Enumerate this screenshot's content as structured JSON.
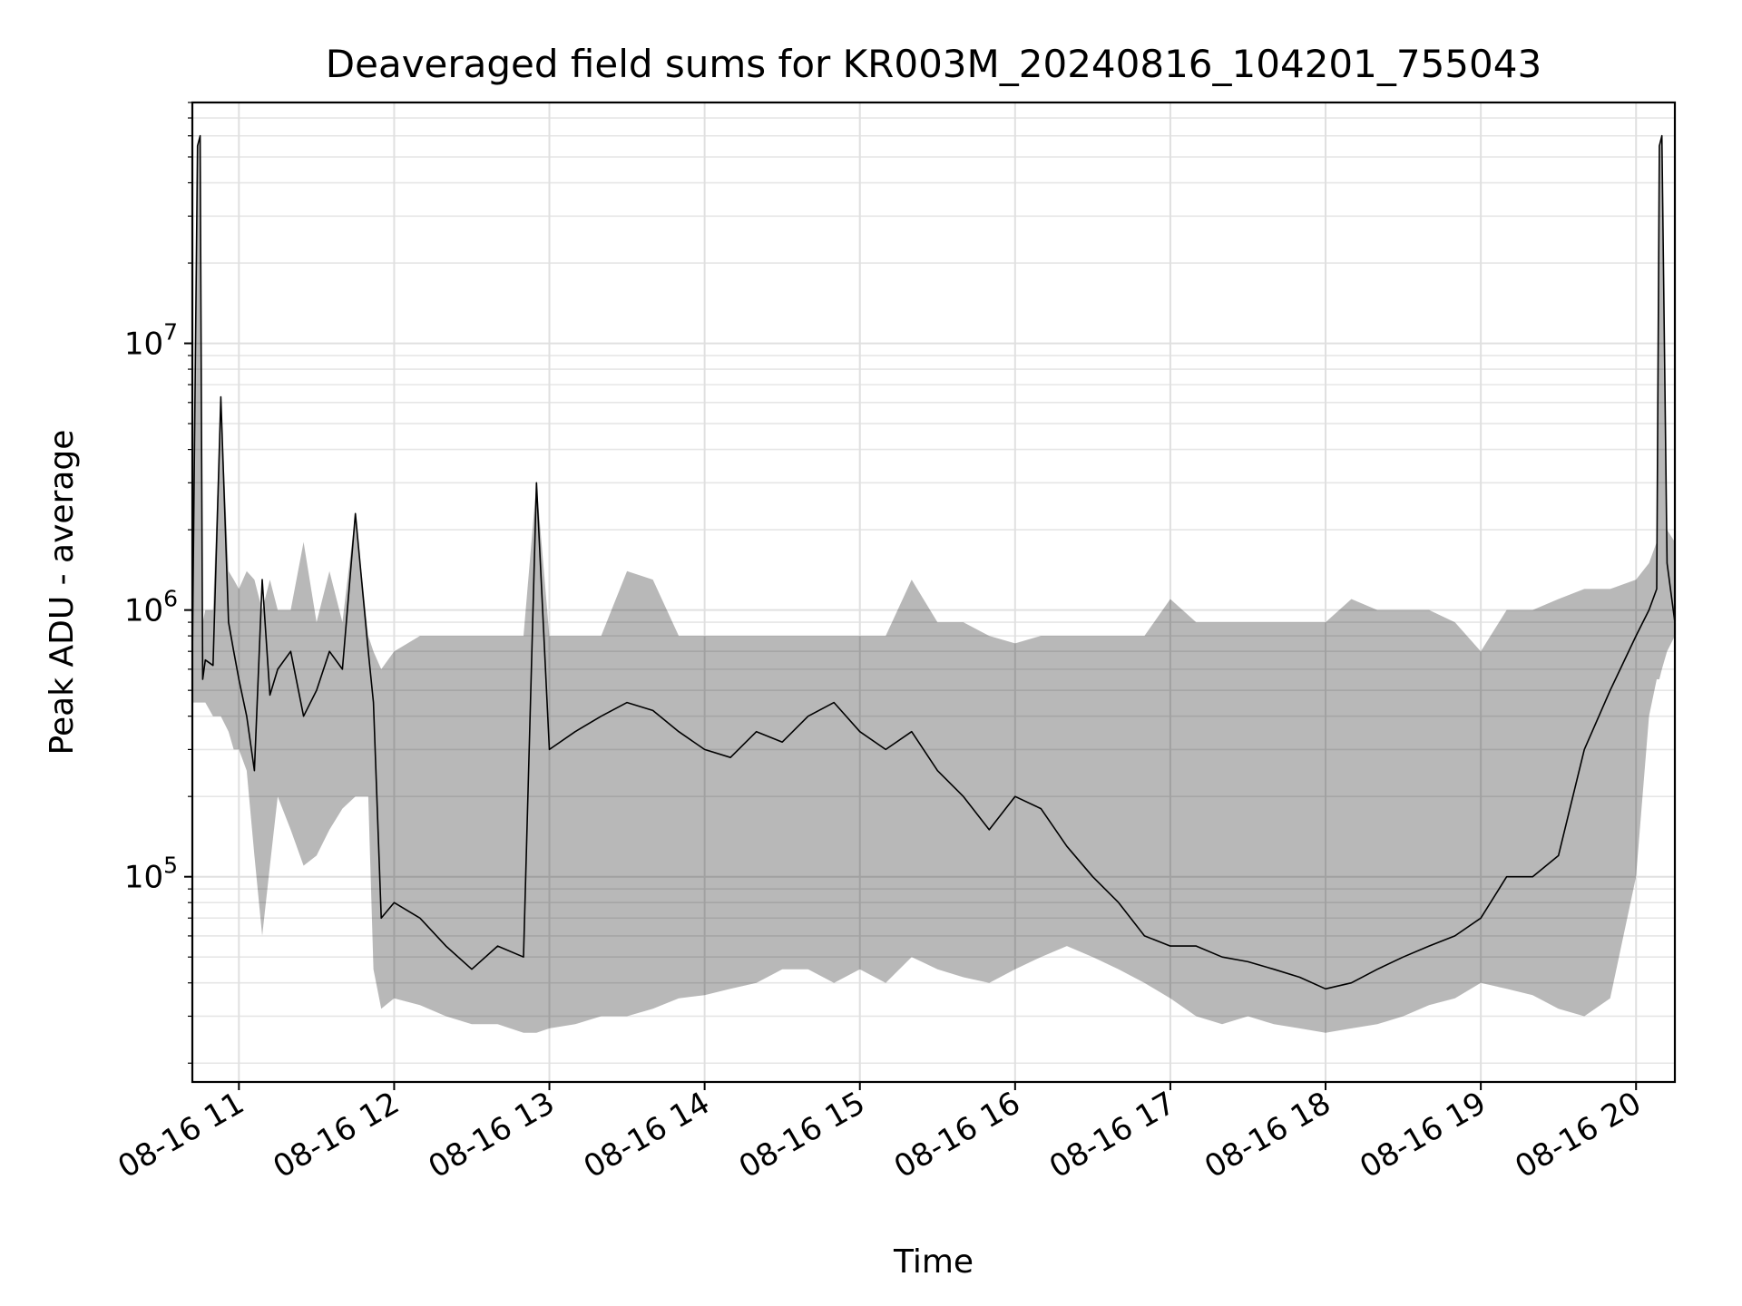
{
  "chart_data": {
    "type": "line",
    "title": "Deaveraged field sums for KR003M_20240816_104201_755043",
    "xlabel": "Time",
    "ylabel": "Peak ADU - average",
    "xlim": [
      "08-16 10:42",
      "08-16 20:15"
    ],
    "ylim": [
      17000,
      80000000
    ],
    "yscale": "log",
    "grid": true,
    "line_color": "#000000",
    "x_ticks": [
      "08-16 11",
      "08-16 12",
      "08-16 13",
      "08-16 14",
      "08-16 15",
      "08-16 16",
      "08-16 17",
      "08-16 18",
      "08-16 19",
      "08-16 20"
    ],
    "y_ticks": [
      {
        "value": 100000,
        "base": "10",
        "exp": "5"
      },
      {
        "value": 1000000,
        "base": "10",
        "exp": "6"
      },
      {
        "value": 10000000,
        "base": "10",
        "exp": "7"
      }
    ],
    "series": [
      {
        "x": [
          "08-16 10:42",
          "08-16 10:44",
          "08-16 10:45",
          "08-16 10:46",
          "08-16 10:47",
          "08-16 10:50",
          "08-16 10:53",
          "08-16 10:56",
          "08-16 10:58",
          "08-16 11:00",
          "08-16 11:03",
          "08-16 11:06",
          "08-16 11:09",
          "08-16 11:12",
          "08-16 11:15",
          "08-16 11:20",
          "08-16 11:25",
          "08-16 11:30",
          "08-16 11:35",
          "08-16 11:40",
          "08-16 11:45",
          "08-16 11:50",
          "08-16 11:52",
          "08-16 11:55",
          "08-16 12:00",
          "08-16 12:10",
          "08-16 12:20",
          "08-16 12:30",
          "08-16 12:40",
          "08-16 12:50",
          "08-16 12:55",
          "08-16 13:00",
          "08-16 13:10",
          "08-16 13:20",
          "08-16 13:30",
          "08-16 13:40",
          "08-16 13:50",
          "08-16 14:00",
          "08-16 14:10",
          "08-16 14:20",
          "08-16 14:30",
          "08-16 14:40",
          "08-16 14:50",
          "08-16 15:00",
          "08-16 15:10",
          "08-16 15:20",
          "08-16 15:30",
          "08-16 15:40",
          "08-16 15:50",
          "08-16 16:00",
          "08-16 16:10",
          "08-16 16:20",
          "08-16 16:30",
          "08-16 16:40",
          "08-16 16:50",
          "08-16 17:00",
          "08-16 17:10",
          "08-16 17:20",
          "08-16 17:30",
          "08-16 17:40",
          "08-16 17:50",
          "08-16 18:00",
          "08-16 18:10",
          "08-16 18:20",
          "08-16 18:30",
          "08-16 18:40",
          "08-16 18:50",
          "08-16 19:00",
          "08-16 19:10",
          "08-16 19:20",
          "08-16 19:30",
          "08-16 19:40",
          "08-16 19:50",
          "08-16 20:00",
          "08-16 20:05",
          "08-16 20:08",
          "08-16 20:09",
          "08-16 20:10",
          "08-16 20:12",
          "08-16 20:15"
        ],
        "y": [
          650000,
          55000000,
          60000000,
          550000,
          650000,
          620000,
          6300000,
          900000,
          700000,
          550000,
          400000,
          250000,
          1300000,
          480000,
          600000,
          700000,
          400000,
          500000,
          700000,
          600000,
          2300000,
          700000,
          450000,
          70000,
          80000,
          70000,
          55000,
          45000,
          55000,
          50000,
          3000000,
          300000,
          350000,
          400000,
          450000,
          420000,
          350000,
          300000,
          280000,
          350000,
          320000,
          400000,
          450000,
          350000,
          300000,
          350000,
          250000,
          200000,
          150000,
          200000,
          180000,
          130000,
          100000,
          80000,
          60000,
          55000,
          55000,
          50000,
          48000,
          45000,
          42000,
          38000,
          40000,
          45000,
          50000,
          55000,
          60000,
          70000,
          100000,
          100000,
          120000,
          300000,
          500000,
          800000,
          1000000,
          1200000,
          55000000,
          60000000,
          1500000,
          900000
        ],
        "envelope_max": [
          1400000,
          55000000,
          60000000,
          900000,
          1000000,
          1000000,
          6300000,
          1400000,
          1300000,
          1200000,
          1400000,
          1300000,
          1000000,
          1300000,
          1000000,
          1000000,
          1800000,
          900000,
          1400000,
          900000,
          2300000,
          800000,
          700000,
          600000,
          700000,
          800000,
          800000,
          800000,
          800000,
          800000,
          3000000,
          800000,
          800000,
          800000,
          1400000,
          1300000,
          800000,
          800000,
          800000,
          800000,
          800000,
          800000,
          800000,
          800000,
          800000,
          1300000,
          900000,
          900000,
          800000,
          750000,
          800000,
          800000,
          800000,
          800000,
          800000,
          1100000,
          900000,
          900000,
          900000,
          900000,
          900000,
          900000,
          1100000,
          1000000,
          1000000,
          1000000,
          900000,
          700000,
          1000000,
          1000000,
          1100000,
          1200000,
          1200000,
          1300000,
          1500000,
          1800000,
          55000000,
          60000000,
          2000000,
          1800000
        ],
        "envelope_min": [
          450000,
          450000,
          450000,
          450000,
          450000,
          400000,
          400000,
          350000,
          300000,
          300000,
          250000,
          120000,
          60000,
          110000,
          200000,
          150000,
          110000,
          120000,
          150000,
          180000,
          200000,
          200000,
          45000,
          32000,
          35000,
          33000,
          30000,
          28000,
          28000,
          26000,
          26000,
          27000,
          28000,
          30000,
          30000,
          32000,
          35000,
          36000,
          38000,
          40000,
          45000,
          45000,
          40000,
          45000,
          40000,
          50000,
          45000,
          42000,
          40000,
          45000,
          50000,
          55000,
          50000,
          45000,
          40000,
          35000,
          30000,
          28000,
          30000,
          28000,
          27000,
          26000,
          27000,
          28000,
          30000,
          33000,
          35000,
          40000,
          38000,
          36000,
          32000,
          30000,
          35000,
          100000,
          400000,
          550000,
          550000,
          600000,
          700000,
          800000
        ]
      }
    ]
  }
}
